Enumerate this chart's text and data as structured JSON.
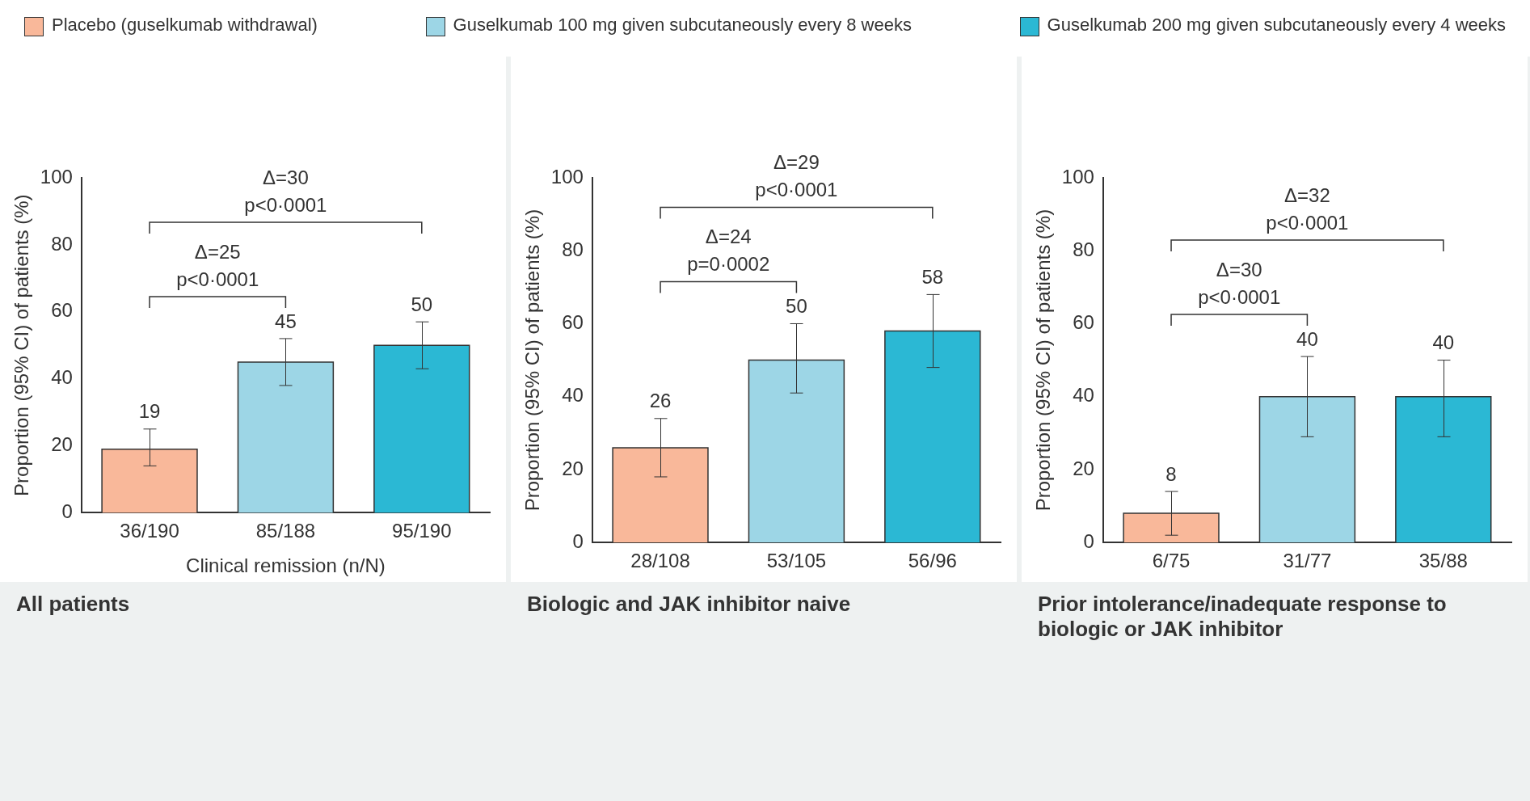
{
  "chart_data": [
    {
      "type": "bar",
      "title": "All patients",
      "xlabel": "Clinical remission (n/N)",
      "ylabel": "Proportion (95% CI) of patients (%)",
      "categories": [
        "36/190",
        "85/188",
        "95/190"
      ],
      "ylim": [
        0,
        100
      ],
      "yticks": [
        0,
        20,
        40,
        60,
        80,
        100
      ],
      "grid": false,
      "legend": "top",
      "data_labels": true,
      "series": [
        {
          "name": "Placebo (guselkumab withdrawal)",
          "color": "#f9b89a",
          "values": [
            19,
            null,
            null
          ],
          "errors": [
            [
              14,
              25
            ],
            null,
            null
          ]
        },
        {
          "name": "Guselkumab 100 mg given subcutaneously every 8 weeks",
          "color": "#9dd6e6",
          "values": [
            null,
            45,
            null
          ],
          "errors": [
            null,
            [
              38,
              52
            ],
            null
          ]
        },
        {
          "name": "Guselkumab 200 mg given subcutaneously every 4 weeks",
          "color": "#2bb8d4",
          "values": [
            null,
            null,
            50
          ],
          "errors": [
            null,
            null,
            [
              43,
              57
            ]
          ]
        }
      ],
      "annotations": [
        "Δ=25",
        "p<0·0001",
        "Δ=30",
        "p<0·0001"
      ]
    },
    {
      "type": "bar",
      "title": "Biologic and JAK inhibitor naive",
      "ylabel": "Proportion (95% CI) of patients (%)",
      "categories": [
        "28/108",
        "53/105",
        "56/96"
      ],
      "ylim": [
        0,
        100
      ],
      "yticks": [
        0,
        20,
        40,
        60,
        80,
        100
      ],
      "grid": false,
      "data_labels": true,
      "series": [
        {
          "color": "#f9b89a",
          "values": [
            26,
            null,
            null
          ],
          "errors": [
            [
              18,
              34
            ],
            null,
            null
          ]
        },
        {
          "color": "#9dd6e6",
          "values": [
            null,
            50,
            null
          ],
          "errors": [
            null,
            [
              41,
              60
            ],
            null
          ]
        },
        {
          "color": "#2bb8d4",
          "values": [
            null,
            null,
            58
          ],
          "errors": [
            null,
            null,
            [
              48,
              68
            ]
          ]
        }
      ],
      "annotations": [
        "Δ=24",
        "p=0·0002",
        "Δ=29",
        "p<0·0001"
      ]
    },
    {
      "type": "bar",
      "title": "Prior intolerance/inadequate response to biologic or JAK inhibitor",
      "ylabel": "Proportion (95% CI) of patients (%)",
      "categories": [
        "6/75",
        "31/77",
        "35/88"
      ],
      "ylim": [
        0,
        100
      ],
      "yticks": [
        0,
        20,
        40,
        60,
        80,
        100
      ],
      "grid": false,
      "data_labels": true,
      "series": [
        {
          "color": "#f9b89a",
          "values": [
            8,
            null,
            null
          ],
          "errors": [
            [
              2,
              14
            ],
            null,
            null
          ]
        },
        {
          "color": "#9dd6e6",
          "values": [
            null,
            40,
            null
          ],
          "errors": [
            null,
            [
              29,
              51
            ],
            null
          ]
        },
        {
          "color": "#2bb8d4",
          "values": [
            null,
            null,
            40
          ],
          "errors": [
            null,
            null,
            [
              29,
              50
            ]
          ]
        }
      ],
      "annotations": [
        "Δ=30",
        "p<0·0001",
        "Δ=32",
        "p<0·0001"
      ]
    }
  ]
}
